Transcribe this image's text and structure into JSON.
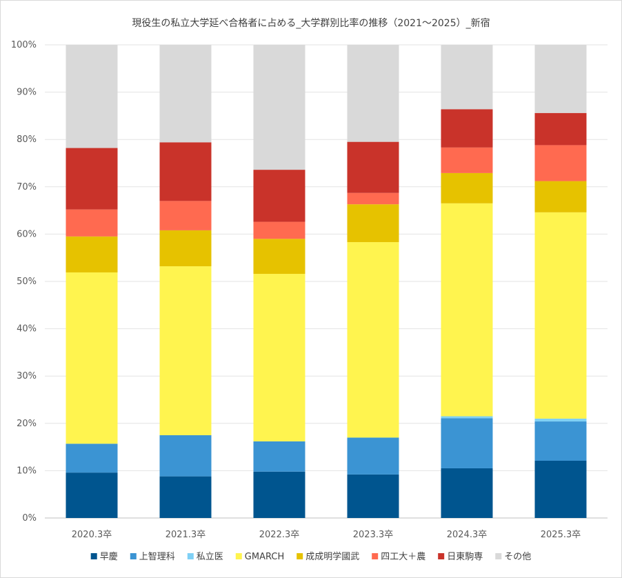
{
  "chart_data": {
    "type": "bar",
    "stacked": true,
    "title": "現役生の私立大学延べ合格者に占める_大学群別比率の推移（2021～2025）_新宿",
    "categories": [
      "2020.3卒",
      "2021.3卒",
      "2022.3卒",
      "2023.3卒",
      "2024.3卒",
      "2025.3卒"
    ],
    "ylim": [
      0,
      100
    ],
    "yticks": [
      0,
      10,
      20,
      30,
      40,
      50,
      60,
      70,
      80,
      90,
      100
    ],
    "ytick_labels": [
      "0%",
      "10%",
      "20%",
      "30%",
      "40%",
      "50%",
      "60%",
      "70%",
      "80%",
      "90%",
      "100%"
    ],
    "grid": true,
    "legend_position": "bottom",
    "series": [
      {
        "name": "早慶",
        "color": "#00558f",
        "values": [
          9.6,
          8.8,
          9.8,
          9.2,
          10.5,
          12.1
        ]
      },
      {
        "name": "上智理科",
        "color": "#3b94d3",
        "values": [
          6.1,
          8.7,
          6.4,
          7.8,
          10.6,
          8.3
        ]
      },
      {
        "name": "私立医",
        "color": "#7fd0f5",
        "values": [
          0.0,
          0.0,
          0.0,
          0.0,
          0.4,
          0.6
        ]
      },
      {
        "name": "GMARCH",
        "color": "#fff44f",
        "values": [
          36.2,
          35.7,
          35.4,
          41.3,
          45.0,
          43.6
        ]
      },
      {
        "name": "成成明学國武",
        "color": "#e6c200",
        "values": [
          7.6,
          7.6,
          7.4,
          8.0,
          6.4,
          6.6
        ]
      },
      {
        "name": "四工大＋農",
        "color": "#ff6a50",
        "values": [
          5.7,
          6.2,
          3.6,
          2.4,
          5.4,
          7.6
        ]
      },
      {
        "name": "日東駒専",
        "color": "#c9332a",
        "values": [
          13.0,
          12.4,
          11.0,
          10.8,
          8.1,
          6.8
        ]
      },
      {
        "name": "その他",
        "color": "#d9d9d9",
        "values": [
          21.8,
          20.6,
          26.4,
          20.5,
          13.6,
          14.4
        ]
      }
    ]
  }
}
